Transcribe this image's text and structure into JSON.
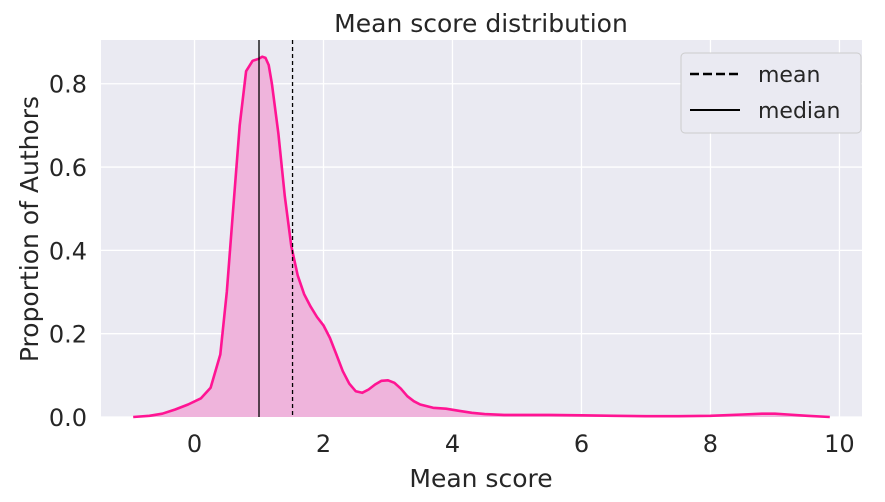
{
  "chart_data": {
    "type": "area",
    "title": "Mean score distribution",
    "xlabel": "Mean score",
    "ylabel": "Proportion of Authors",
    "xlim": [
      -1.45,
      10.35
    ],
    "ylim": [
      0,
      0.905
    ],
    "xticks": [
      0,
      2,
      4,
      6,
      8,
      10
    ],
    "yticks": [
      0.0,
      0.2,
      0.4,
      0.6,
      0.8
    ],
    "ytick_labels": [
      "0.0",
      "0.2",
      "0.4",
      "0.6",
      "0.8"
    ],
    "grid": true,
    "background": "#eaeaf2",
    "legend_position": "top-right",
    "series": [
      {
        "kind": "kde",
        "color": "#ff1493",
        "fill_color": "#efb4dc",
        "x": [
          -0.95,
          -0.7,
          -0.5,
          -0.3,
          -0.1,
          0.1,
          0.25,
          0.4,
          0.5,
          0.6,
          0.7,
          0.8,
          0.9,
          1.0,
          1.05,
          1.1,
          1.15,
          1.2,
          1.3,
          1.4,
          1.5,
          1.6,
          1.7,
          1.8,
          1.9,
          2.0,
          2.1,
          2.2,
          2.3,
          2.4,
          2.5,
          2.6,
          2.7,
          2.8,
          2.9,
          3.0,
          3.1,
          3.2,
          3.3,
          3.4,
          3.5,
          3.7,
          3.9,
          4.1,
          4.3,
          4.5,
          4.8,
          5.0,
          5.5,
          6.0,
          6.5,
          7.0,
          7.5,
          8.0,
          8.5,
          8.8,
          9.0,
          9.2,
          9.5,
          9.85
        ],
        "y": [
          0.0,
          0.003,
          0.008,
          0.018,
          0.03,
          0.045,
          0.07,
          0.15,
          0.3,
          0.5,
          0.7,
          0.83,
          0.855,
          0.86,
          0.865,
          0.862,
          0.845,
          0.8,
          0.68,
          0.53,
          0.41,
          0.34,
          0.295,
          0.265,
          0.24,
          0.22,
          0.19,
          0.15,
          0.11,
          0.08,
          0.062,
          0.058,
          0.066,
          0.078,
          0.087,
          0.088,
          0.082,
          0.068,
          0.05,
          0.038,
          0.03,
          0.022,
          0.02,
          0.015,
          0.01,
          0.007,
          0.005,
          0.005,
          0.005,
          0.004,
          0.003,
          0.002,
          0.002,
          0.003,
          0.006,
          0.008,
          0.008,
          0.006,
          0.003,
          0.0
        ]
      }
    ],
    "reference_lines": [
      {
        "name": "mean",
        "x": 1.52,
        "style": "dashed",
        "color": "#000000"
      },
      {
        "name": "median",
        "x": 1.0,
        "style": "solid",
        "color": "#000000"
      }
    ]
  },
  "legend": {
    "items": [
      {
        "label": "mean",
        "style": "dashed"
      },
      {
        "label": "median",
        "style": "solid"
      }
    ]
  }
}
